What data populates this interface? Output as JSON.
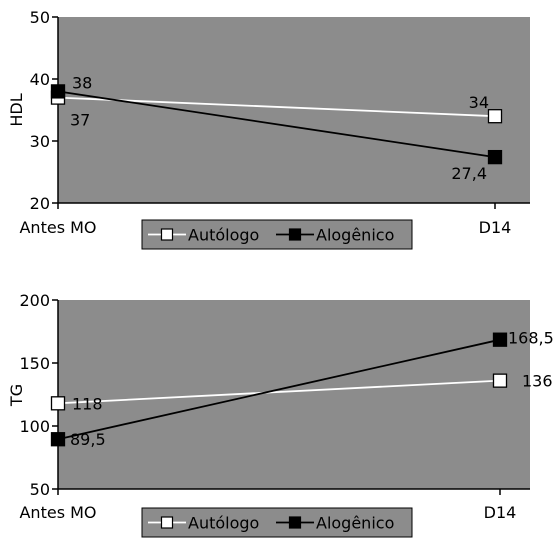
{
  "colors": {
    "plot_bg": "#8c8c8c",
    "autologo": "#ffffff",
    "alogenico": "#000000",
    "axis": "#000000"
  },
  "chart_data": [
    {
      "type": "line",
      "title": "",
      "ylabel": "HDL",
      "xlabel": "",
      "categories": [
        "Antes MO",
        "D14"
      ],
      "ylim": [
        20,
        50
      ],
      "yticks": [
        "20",
        "30",
        "40",
        "50"
      ],
      "legend_position": "bottom-center",
      "series": [
        {
          "name": "Autólogo",
          "values": [
            37,
            34
          ],
          "labels": [
            "37",
            "34"
          ],
          "color": "#ffffff",
          "marker": "hollow-square"
        },
        {
          "name": "Alogênico",
          "values": [
            38,
            27.4
          ],
          "labels": [
            "38",
            "27,4"
          ],
          "color": "#000000",
          "marker": "filled-square"
        }
      ]
    },
    {
      "type": "line",
      "title": "",
      "ylabel": "TG",
      "xlabel": "",
      "categories": [
        "Antes MO",
        "D14"
      ],
      "ylim": [
        50,
        200
      ],
      "yticks": [
        "50",
        "100",
        "150",
        "200"
      ],
      "legend_position": "bottom-center",
      "series": [
        {
          "name": "Autólogo",
          "values": [
            118,
            136
          ],
          "labels": [
            "118",
            "136"
          ],
          "color": "#ffffff",
          "marker": "hollow-square"
        },
        {
          "name": "Alogênico",
          "values": [
            89.5,
            168.5
          ],
          "labels": [
            "89,5",
            "168,5"
          ],
          "color": "#000000",
          "marker": "filled-square"
        }
      ]
    }
  ]
}
